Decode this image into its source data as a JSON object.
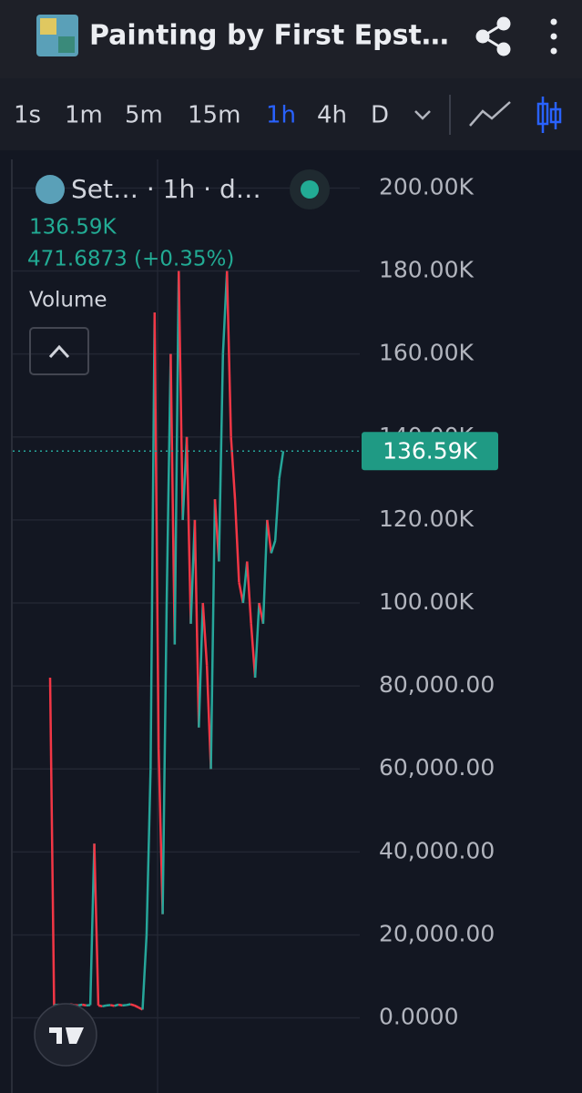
{
  "header": {
    "title": "Painting by First Epst…"
  },
  "timeframes": {
    "options": [
      "1s",
      "1m",
      "5m",
      "15m",
      "1h",
      "4h",
      "D"
    ],
    "active": "1h"
  },
  "chart_data": {
    "type": "line",
    "legend": {
      "symbol": "Set… · 1h · d…",
      "price": "136.59K",
      "change": "471.6873 (+0.35%)",
      "indicator": "Volume"
    },
    "categories": [
      null,
      null,
      null,
      null,
      null,
      null,
      null,
      null,
      null,
      null,
      null,
      null,
      null,
      null,
      null,
      null,
      null,
      null,
      null,
      null,
      null,
      null,
      null,
      null,
      null,
      null,
      null,
      null,
      null,
      null,
      null,
      null,
      null,
      null,
      null,
      null,
      null,
      null,
      null,
      null,
      null,
      null,
      null,
      null,
      null,
      null,
      null,
      null,
      null,
      null,
      null,
      null,
      null,
      null,
      null,
      null,
      null,
      null,
      null
    ],
    "values": [
      82000,
      3000,
      3200,
      3100,
      3000,
      3300,
      3100,
      3000,
      3200,
      3000,
      3100,
      42000,
      3000,
      2800,
      3000,
      3100,
      2900,
      3200,
      3000,
      3100,
      3300,
      3000,
      2500,
      2000,
      20000,
      60000,
      170000,
      65000,
      25000,
      100000,
      160000,
      90000,
      180000,
      120000,
      140000,
      95000,
      120000,
      70000,
      100000,
      85000,
      60000,
      125000,
      110000,
      160000,
      180000,
      140000,
      125000,
      105000,
      100000,
      110000,
      95000,
      82000,
      100000,
      95000,
      120000,
      112000,
      115000,
      130000,
      136590
    ],
    "up_color": "#26a69a",
    "down_color": "#f23645",
    "last_price": {
      "value": 136590,
      "label": "136.59K"
    },
    "ylim": [
      -17000,
      208000
    ],
    "yticks": [
      {
        "value": 0,
        "label": "0.0000"
      },
      {
        "value": 20000,
        "label": "20,000.00"
      },
      {
        "value": 40000,
        "label": "40,000.00"
      },
      {
        "value": 60000,
        "label": "60,000.00"
      },
      {
        "value": 80000,
        "label": "80,000.00"
      },
      {
        "value": 100000,
        "label": "100.00K"
      },
      {
        "value": 120000,
        "label": "120.00K"
      },
      {
        "value": 140000,
        "label": "140.00K"
      },
      {
        "value": 160000,
        "label": "160.00K"
      },
      {
        "value": 180000,
        "label": "180.00K"
      },
      {
        "value": 200000,
        "label": "200.00K"
      }
    ],
    "grid": true
  }
}
